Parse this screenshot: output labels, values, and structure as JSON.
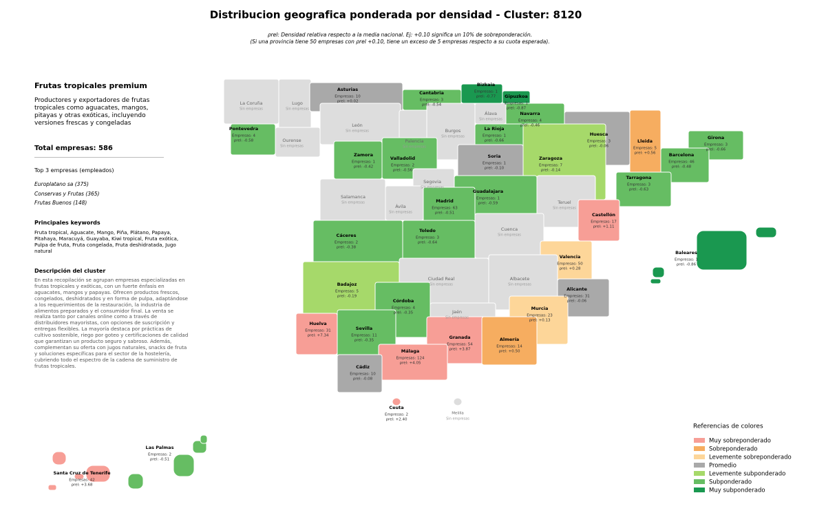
{
  "title": "Distribucion geografica ponderada por densidad - Cluster: 8120",
  "subtitle": [
    "ρrel: Densidad relativa respecto a la media nacional. Ej: +0.10 significa un 10% de sobreponderación.",
    "(Si una provincia tiene 50 empresas con ρrel +0.10, tiene un exceso de 5 empresas respecto a su cuota esperada)."
  ],
  "sidebar": {
    "title": "Frutas tropicales premium",
    "intro": "Productores y exportadores de frutas tropicales como aguacates, mangos, pitayas y otras exóticas, incluyendo versiones frescas y congeladas",
    "total": "Total empresas: 586",
    "top_title": "Top 3 empresas (empleados)",
    "top": [
      "Europlatano sa (375)",
      "Conservas y Frutas (365)",
      "Frutas Buenos (148)"
    ],
    "keywords_title": "Principales keywords",
    "keywords": "Fruta tropical, Aguacate, Mango, Piña, Plátano, Papaya, Pitahaya, Maracuyá, Guayaba, Kiwi tropical, Fruta exótica, Pulpa de fruta, Fruta congelada, Fruta deshidratada, Jugo natural",
    "description_title": "Descripción del cluster",
    "description": "En esta recopilación se agrupan empresas especializadas en frutas tropicales y exóticas, con un fuerte énfasis en aguacates, mangos y papayas. Ofrecen productos frescos, congelados, deshidratados y en forma de pulpa, adaptándose a los requerimientos de la restauración, la industria de alimentos preparados y el consumidor final. La venta se realiza tanto por canales online como a través de distribuidores mayoristas, con opciones de suscripción y entregas flexibles. La mayoría destaca por prácticas de cultivo sostenible, riego por goteo y certificaciones de calidad que garantizan un producto seguro y sabroso. Además, complementan su oferta con jugos naturales, snacks de fruta y soluciones específicas para el sector de la hostelería, cubriendo todo el espectro de la cadena de suministro de frutas tropicales."
  },
  "provinces": [
    {
      "name": "La Coruña",
      "note": "Sin empresas",
      "color": "#dddddd"
    },
    {
      "name": "Lugo",
      "note": "Sin empresas",
      "color": "#dddddd"
    },
    {
      "name": "Asturias",
      "empresas": "Empresas: 10",
      "rho": "ρrel: +0.02",
      "color": "#a9a9a9"
    },
    {
      "name": "Cantabria",
      "empresas": "Empresas: 3",
      "rho": "ρrel: -0.54",
      "color": "#66bd63"
    },
    {
      "name": "Bizkaia",
      "empresas": "Empresas: 1",
      "rho": "ρrel: -0.77",
      "color": "#1a9850"
    },
    {
      "name": "Gipuzkoa",
      "empresas": "Empresas: 1",
      "rho": "ρrel: -0.87",
      "color": "#1a9850"
    },
    {
      "name": "Álava",
      "note": "Sin empresas",
      "color": "#dddddd"
    },
    {
      "name": "Navarra",
      "empresas": "Empresas: 4",
      "rho": "ρrel: -0.46",
      "color": "#66bd63"
    },
    {
      "name": "La Rioja",
      "empresas": "Empresas: 1",
      "rho": "ρrel: -0.66",
      "color": "#66bd63"
    },
    {
      "name": "Pontevedra",
      "empresas": "Empresas: 4",
      "rho": "ρrel: -0.58",
      "color": "#66bd63"
    },
    {
      "name": "Ourense",
      "note": "Sin empresas",
      "color": "#dddddd"
    },
    {
      "name": "León",
      "note": "Sin empresas",
      "color": "#dddddd"
    },
    {
      "name": "Palencia",
      "note": "Sin empresas",
      "color": "#dddddd"
    },
    {
      "name": "Burgos",
      "note": "Sin empresas",
      "color": "#dddddd"
    },
    {
      "name": "Huesca",
      "empresas": "Empresas: 3",
      "rho": "ρrel: -0.06",
      "color": "#a9a9a9"
    },
    {
      "name": "Lleida",
      "empresas": "Empresas: 5",
      "rho": "ρrel: +0.56",
      "color": "#f6ad60"
    },
    {
      "name": "Girona",
      "empresas": "Empresas: 3",
      "rho": "ρrel: -0.66",
      "color": "#66bd63"
    },
    {
      "name": "Barcelona",
      "empresas": "Empresas: 46",
      "rho": "ρrel: -0.48",
      "color": "#66bd63"
    },
    {
      "name": "Tarragona",
      "empresas": "Empresas: 3",
      "rho": "ρrel: -0.63",
      "color": "#66bd63"
    },
    {
      "name": "Zaragoza",
      "empresas": "Empresas: 7",
      "rho": "ρrel: -0.14",
      "color": "#a6d96a"
    },
    {
      "name": "Soria",
      "empresas": "Empresas: 1",
      "rho": "ρrel: -0.10",
      "color": "#a9a9a9"
    },
    {
      "name": "Zamora",
      "empresas": "Empresas: 1",
      "rho": "ρrel: -0.42",
      "color": "#66bd63"
    },
    {
      "name": "Valladolid",
      "empresas": "Empresas: 2",
      "rho": "ρrel: -0.56",
      "color": "#66bd63"
    },
    {
      "name": "Segovia",
      "note": "Sin empresas",
      "color": "#dddddd"
    },
    {
      "name": "Salamanca",
      "note": "Sin empresas",
      "color": "#dddddd"
    },
    {
      "name": "Ávila",
      "note": "Sin empresas",
      "color": "#dddddd"
    },
    {
      "name": "Guadalajara",
      "empresas": "Empresas: 1",
      "rho": "ρrel: -0.59",
      "color": "#66bd63"
    },
    {
      "name": "Madrid",
      "empresas": "Empresas: 63",
      "rho": "ρrel: -0.51",
      "color": "#66bd63"
    },
    {
      "name": "Teruel",
      "note": "Sin empresas",
      "color": "#dddddd"
    },
    {
      "name": "Castellón",
      "empresas": "Empresas: 17",
      "rho": "ρrel: +1.11",
      "color": "#f79e96"
    },
    {
      "name": "Cuenca",
      "note": "Sin empresas",
      "color": "#dddddd"
    },
    {
      "name": "Cáceres",
      "empresas": "Empresas: 2",
      "rho": "ρrel: -0.38",
      "color": "#66bd63"
    },
    {
      "name": "Toledo",
      "empresas": "Empresas: 3",
      "rho": "ρrel: -0.64",
      "color": "#66bd63"
    },
    {
      "name": "Valencia",
      "empresas": "Empresas: 50",
      "rho": "ρrel: +0.28",
      "color": "#fdd699"
    },
    {
      "name": "Baleares",
      "empresas": "Empresas: 1",
      "rho": "ρrel: -0.86",
      "color": "#1a9850"
    },
    {
      "name": "Badajoz",
      "empresas": "Empresas: 5",
      "rho": "ρrel: -0.19",
      "color": "#a6d96a"
    },
    {
      "name": "Ciudad Real",
      "note": "Sin empresas",
      "color": "#dddddd"
    },
    {
      "name": "Albacete",
      "note": "Sin empresas",
      "color": "#dddddd"
    },
    {
      "name": "Alicante",
      "empresas": "Empresas: 31",
      "rho": "ρrel: -0.06",
      "color": "#a9a9a9"
    },
    {
      "name": "Córdoba",
      "empresas": "Empresas: 4",
      "rho": "ρrel: -0.35",
      "color": "#66bd63"
    },
    {
      "name": "Jaén",
      "note": "Sin empresas",
      "color": "#dddddd"
    },
    {
      "name": "Murcia",
      "empresas": "Empresas: 23",
      "rho": "ρrel: +0.13",
      "color": "#fdd699"
    },
    {
      "name": "Huelva",
      "empresas": "Empresas: 31",
      "rho": "ρrel: +7.34",
      "color": "#f79e96"
    },
    {
      "name": "Sevilla",
      "empresas": "Empresas: 11",
      "rho": "ρrel: -0.35",
      "color": "#66bd63"
    },
    {
      "name": "Granada",
      "empresas": "Empresas: 54",
      "rho": "ρrel: +3.87",
      "color": "#f79e96"
    },
    {
      "name": "Almería",
      "empresas": "Empresas: 14",
      "rho": "ρrel: +0.50",
      "color": "#f6ad60"
    },
    {
      "name": "Málaga",
      "empresas": "Empresas: 124",
      "rho": "ρrel: +4.05",
      "color": "#f79e96"
    },
    {
      "name": "Cádiz",
      "empresas": "Empresas: 10",
      "rho": "ρrel: -0.08",
      "color": "#a9a9a9"
    },
    {
      "name": "Ceuta",
      "empresas": "Empresas: 2",
      "rho": "ρrel: +2.40",
      "color": "#f79e96"
    },
    {
      "name": "Melilla",
      "note": "Sin empresas",
      "color": "#dddddd"
    },
    {
      "name": "Las Palmas",
      "empresas": "Empresas: 2",
      "rho": "ρrel: -0.51",
      "color": "#66bd63"
    },
    {
      "name": "Santa Cruz de Tenerife",
      "empresas": "Empresas: 42",
      "rho": "ρrel: +3.68",
      "color": "#f79e96"
    }
  ],
  "legend": {
    "title": "Referencias de colores",
    "items": [
      {
        "label": "Muy sobreponderado",
        "color": "#f79e96"
      },
      {
        "label": "Sobreponderado",
        "color": "#f6ad60"
      },
      {
        "label": "Levemente sobreponderado",
        "color": "#fdd699"
      },
      {
        "label": "Promedio",
        "color": "#a9a9a9"
      },
      {
        "label": "Levemente subponderado",
        "color": "#a6d96a"
      },
      {
        "label": "Subponderado",
        "color": "#66bd63"
      },
      {
        "label": "Muy subponderado",
        "color": "#1a9850"
      }
    ]
  }
}
